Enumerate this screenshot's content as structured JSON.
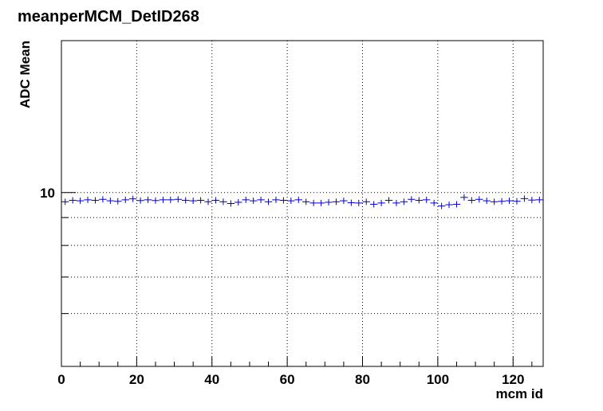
{
  "chart_data": {
    "type": "scatter",
    "title": "meanperMCM_DetID268",
    "xlabel": "mcm id",
    "ylabel": "ADC Mean",
    "xlim": [
      0,
      128
    ],
    "ylim": [
      4.8,
      19
    ],
    "log_y": true,
    "x_ticks": [
      0,
      20,
      40,
      60,
      80,
      100,
      120
    ],
    "x_tick_labels": [
      "0",
      "20",
      "40",
      "60",
      "80",
      "100",
      "120"
    ],
    "y_ticks": [
      10
    ],
    "y_tick_labels": [
      "10"
    ],
    "y_minor_ticks": [
      6,
      7,
      8,
      9
    ],
    "grid": true,
    "bin_width": 2,
    "series": [
      {
        "color": "#0000cc",
        "x": [
          1,
          3,
          5,
          7,
          9,
          11,
          13,
          15,
          17,
          19,
          21,
          23,
          25,
          27,
          29,
          31,
          33,
          35,
          37,
          39,
          41,
          43,
          45,
          47,
          49,
          51,
          53,
          55,
          57,
          59,
          61,
          63,
          65,
          67,
          69,
          71,
          73,
          75,
          77,
          79,
          81,
          83,
          85,
          87,
          89,
          91,
          93,
          95,
          97,
          99,
          101,
          103,
          105,
          107,
          109,
          111,
          113,
          115,
          117,
          119,
          121,
          123,
          125,
          127
        ],
        "values": [
          9.62,
          9.68,
          9.66,
          9.7,
          9.68,
          9.72,
          9.66,
          9.64,
          9.7,
          9.74,
          9.67,
          9.7,
          9.67,
          9.7,
          9.7,
          9.72,
          9.68,
          9.66,
          9.68,
          9.62,
          9.68,
          9.62,
          9.55,
          9.6,
          9.7,
          9.66,
          9.7,
          9.62,
          9.7,
          9.68,
          9.66,
          9.7,
          9.62,
          9.57,
          9.57,
          9.6,
          9.62,
          9.66,
          9.58,
          9.57,
          9.62,
          9.52,
          9.57,
          9.68,
          9.57,
          9.62,
          9.72,
          9.68,
          9.7,
          9.57,
          9.45,
          9.5,
          9.52,
          9.8,
          9.68,
          9.72,
          9.66,
          9.62,
          9.64,
          9.66,
          9.64,
          9.75,
          9.69,
          9.7
        ]
      }
    ]
  }
}
